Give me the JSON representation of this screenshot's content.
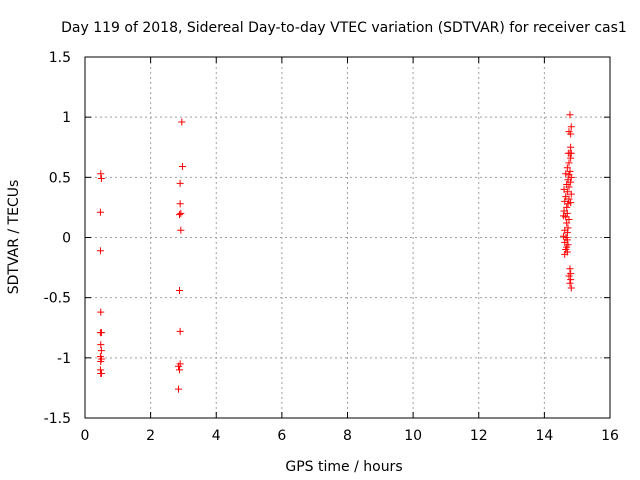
{
  "chart_data": {
    "type": "scatter",
    "title": "Day 119 of 2018, Sidereal Day-to-day VTEC variation (SDTVAR) for receiver cas1",
    "xlabel": "GPS time / hours",
    "ylabel": "SDTVAR / TECUs",
    "xlim": [
      0,
      16
    ],
    "ylim": [
      -1.5,
      1.5
    ],
    "xticks": [
      0,
      2,
      4,
      6,
      8,
      10,
      12,
      14,
      16
    ],
    "yticks": [
      -1.5,
      -1,
      -0.5,
      0,
      0.5,
      1,
      1.5
    ],
    "xtick_labels": [
      "0",
      "2",
      "4",
      "6",
      "8",
      "10",
      "12",
      "14",
      "16"
    ],
    "ytick_labels": [
      "-1.5",
      "-1",
      "-0.5",
      "0",
      "0.5",
      "1",
      "1.5"
    ],
    "grid": true,
    "marker": "+",
    "color": "#ff0000",
    "series": [
      {
        "name": "SDTVAR",
        "points": [
          [
            0.48,
            0.53
          ],
          [
            0.5,
            0.49
          ],
          [
            0.47,
            0.21
          ],
          [
            0.47,
            -0.11
          ],
          [
            0.48,
            -0.62
          ],
          [
            0.47,
            -0.79
          ],
          [
            0.5,
            -0.79
          ],
          [
            0.48,
            -0.89
          ],
          [
            0.5,
            -0.94
          ],
          [
            0.47,
            -0.99
          ],
          [
            0.5,
            -1.01
          ],
          [
            0.48,
            -1.03
          ],
          [
            0.47,
            -1.1
          ],
          [
            0.48,
            -1.13
          ],
          [
            0.5,
            -1.13
          ],
          [
            2.95,
            0.96
          ],
          [
            2.97,
            0.59
          ],
          [
            2.9,
            0.45
          ],
          [
            2.9,
            0.28
          ],
          [
            2.92,
            0.2
          ],
          [
            2.88,
            0.19
          ],
          [
            2.92,
            0.06
          ],
          [
            2.88,
            -0.44
          ],
          [
            2.9,
            -0.78
          ],
          [
            2.9,
            -1.05
          ],
          [
            2.85,
            -1.07
          ],
          [
            2.88,
            -1.1
          ],
          [
            2.85,
            -1.26
          ],
          [
            14.78,
            1.02
          ],
          [
            14.82,
            0.92
          ],
          [
            14.75,
            0.88
          ],
          [
            14.8,
            0.86
          ],
          [
            14.8,
            0.75
          ],
          [
            14.73,
            0.7
          ],
          [
            14.78,
            0.7
          ],
          [
            14.82,
            0.7
          ],
          [
            14.8,
            0.66
          ],
          [
            14.75,
            0.62
          ],
          [
            14.7,
            0.58
          ],
          [
            14.78,
            0.55
          ],
          [
            14.65,
            0.53
          ],
          [
            14.75,
            0.52
          ],
          [
            14.82,
            0.5
          ],
          [
            14.72,
            0.48
          ],
          [
            14.8,
            0.46
          ],
          [
            14.68,
            0.44
          ],
          [
            14.75,
            0.42
          ],
          [
            14.6,
            0.4
          ],
          [
            14.7,
            0.38
          ],
          [
            14.82,
            0.36
          ],
          [
            14.65,
            0.34
          ],
          [
            14.75,
            0.32
          ],
          [
            14.62,
            0.3
          ],
          [
            14.72,
            0.28
          ],
          [
            14.8,
            0.29
          ],
          [
            14.68,
            0.25
          ],
          [
            14.6,
            0.22
          ],
          [
            14.7,
            0.2
          ],
          [
            14.58,
            0.18
          ],
          [
            14.65,
            0.17
          ],
          [
            14.75,
            0.15
          ],
          [
            14.68,
            0.12
          ],
          [
            14.72,
            0.08
          ],
          [
            14.62,
            0.06
          ],
          [
            14.7,
            0.04
          ],
          [
            14.58,
            0.01
          ],
          [
            14.66,
            0.0
          ],
          [
            14.7,
            -0.02
          ],
          [
            14.62,
            -0.04
          ],
          [
            14.72,
            -0.06
          ],
          [
            14.68,
            -0.08
          ],
          [
            14.65,
            -0.1
          ],
          [
            14.7,
            -0.12
          ],
          [
            14.62,
            -0.14
          ],
          [
            14.78,
            -0.26
          ],
          [
            14.8,
            -0.3
          ],
          [
            14.75,
            -0.32
          ],
          [
            14.8,
            -0.35
          ],
          [
            14.78,
            -0.38
          ],
          [
            14.82,
            -0.42
          ]
        ]
      }
    ]
  }
}
